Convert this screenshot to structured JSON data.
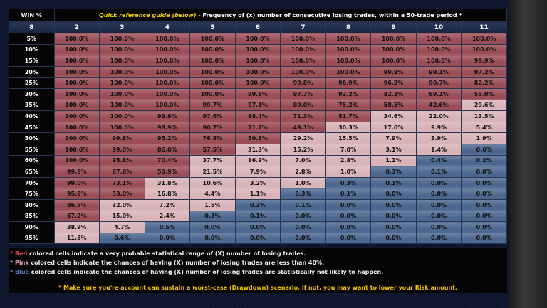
{
  "header": {
    "win_label": "WIN %",
    "selected": "8",
    "title_highlight": "Quick reference guide (below)",
    "title_rest": "- Frequency of (x) number of consecutive losing trades, within a 50-trade period *",
    "columns": [
      "2",
      "3",
      "4",
      "5",
      "6",
      "7",
      "8",
      "9",
      "10",
      "11"
    ]
  },
  "palette": {
    "r": "#9c4e57",
    "p": "#d8b3b7",
    "b": "#4d6890"
  },
  "table": {
    "rows": [
      {
        "win": "5%",
        "cells": [
          "100.0%",
          "100.0%",
          "100.0%",
          "100.0%",
          "100.0%",
          "100.0%",
          "100.0%",
          "100.0%",
          "100.0%",
          "100.0%"
        ],
        "shades": "rrrrrrrrrr"
      },
      {
        "win": "10%",
        "cells": [
          "100.0%",
          "100.0%",
          "100.0%",
          "100.0%",
          "100.0%",
          "100.0%",
          "100.0%",
          "100.0%",
          "100.0%",
          "100.0%"
        ],
        "shades": "rrrrrrrrrr"
      },
      {
        "win": "15%",
        "cells": [
          "100.0%",
          "100.0%",
          "100.0%",
          "100.0%",
          "100.0%",
          "100.0%",
          "100.0%",
          "100.0%",
          "100.0%",
          "99.9%"
        ],
        "shades": "rrrrrrrrrr"
      },
      {
        "win": "20%",
        "cells": [
          "100.0%",
          "100.0%",
          "100.0%",
          "100.0%",
          "100.0%",
          "100.0%",
          "100.0%",
          "99.8%",
          "99.1%",
          "97.2%"
        ],
        "shades": "rrrrrrrrrr"
      },
      {
        "win": "25%",
        "cells": [
          "100.0%",
          "100.0%",
          "100.0%",
          "100.0%",
          "100.0%",
          "99.8%",
          "98.9%",
          "96.2%",
          "90.7%",
          "82.2%"
        ],
        "shades": "rrrrrrrrrr"
      },
      {
        "win": "30%",
        "cells": [
          "100.0%",
          "100.0%",
          "100.0%",
          "100.0%",
          "99.6%",
          "97.7%",
          "92.2%",
          "82.3%",
          "69.1%",
          "55.0%"
        ],
        "shades": "rrrrrrrrrr"
      },
      {
        "win": "35%",
        "cells": [
          "100.0%",
          "100.0%",
          "100.0%",
          "99.7%",
          "97.1%",
          "89.0%",
          "75.2%",
          "58.5%",
          "42.6%",
          "29.6%"
        ],
        "shades": "rrrrrrrrrp"
      },
      {
        "win": "40%",
        "cells": [
          "100.0%",
          "100.0%",
          "99.9%",
          "97.6%",
          "88.4%",
          "71.3%",
          "51.7%",
          "34.6%",
          "22.0%",
          "13.5%"
        ],
        "shades": "rrrrrrrppp"
      },
      {
        "win": "45%",
        "cells": [
          "100.0%",
          "100.0%",
          "98.9%",
          "90.7%",
          "71.7%",
          "49.1%",
          "30.3%",
          "17.6%",
          "9.9%",
          "5.4%"
        ],
        "shades": "rrrrrrpppp"
      },
      {
        "win": "50%",
        "cells": [
          "100.0%",
          "99.8%",
          "95.2%",
          "76.8%",
          "50.8%",
          "29.2%",
          "15.5%",
          "7.9%",
          "3.9%",
          "1.9%"
        ],
        "shades": "rrrrrppppp"
      },
      {
        "win": "55%",
        "cells": [
          "100.0%",
          "99.0%",
          "86.0%",
          "57.5%",
          "31.3%",
          "15.2%",
          "7.0%",
          "3.1%",
          "1.4%",
          "0.6%"
        ],
        "shades": "rrrrpppppb"
      },
      {
        "win": "60%",
        "cells": [
          "100.0%",
          "95.8%",
          "70.4%",
          "37.7%",
          "16.9%",
          "7.0%",
          "2.8%",
          "1.1%",
          "0.4%",
          "0.2%"
        ],
        "shades": "rrrpppppbb"
      },
      {
        "win": "65%",
        "cells": [
          "99.8%",
          "87.8%",
          "50.9%",
          "21.5%",
          "7.9%",
          "2.8%",
          "1.0%",
          "0.3%",
          "0.1%",
          "0.0%"
        ],
        "shades": "rrrppppbbb"
      },
      {
        "win": "70%",
        "cells": [
          "99.0%",
          "73.1%",
          "31.8%",
          "10.6%",
          "3.2%",
          "1.0%",
          "0.3%",
          "0.1%",
          "0.0%",
          "0.0%"
        ],
        "shades": "rrppppbbbb"
      },
      {
        "win": "75%",
        "cells": [
          "95.8%",
          "53.0%",
          "16.8%",
          "4.4%",
          "1.1%",
          "0.3%",
          "0.1%",
          "0.0%",
          "0.0%",
          "0.0%"
        ],
        "shades": "rrpppbbbbb"
      },
      {
        "win": "80%",
        "cells": [
          "86.5%",
          "32.0%",
          "7.2%",
          "1.5%",
          "0.3%",
          "0.1%",
          "0.0%",
          "0.0%",
          "0.0%",
          "0.0%"
        ],
        "shades": "rpppbbbbbb"
      },
      {
        "win": "85%",
        "cells": [
          "67.2%",
          "15.0%",
          "2.4%",
          "0.3%",
          "0.1%",
          "0.0%",
          "0.0%",
          "0.0%",
          "0.0%",
          "0.0%"
        ],
        "shades": "rppbbbbbbb"
      },
      {
        "win": "90%",
        "cells": [
          "38.9%",
          "4.7%",
          "0.5%",
          "0.0%",
          "0.0%",
          "0.0%",
          "0.0%",
          "0.0%",
          "0.0%",
          "0.0%"
        ],
        "shades": "ppbbbbbbbb"
      },
      {
        "win": "95%",
        "cells": [
          "11.5%",
          "0.6%",
          "0.0%",
          "0.0%",
          "0.0%",
          "0.0%",
          "0.0%",
          "0.0%",
          "0.0%",
          "0.0%"
        ],
        "shades": "pbbbbbbbbb"
      }
    ]
  },
  "notes": [
    {
      "marker": "*",
      "word": "Red",
      "text": "colored cells indicate a very probable statistical range of (X) number of losing trades.",
      "color": "#e0454f"
    },
    {
      "marker": "*",
      "word": "Pink",
      "text": "colored cells indicate the chances of having (X) number of losing trades are less than 40%.",
      "color": "#e3a8b4"
    },
    {
      "marker": "*",
      "word": "Blue",
      "text": "colored cells indicate the chances of having (X) number of losing trades are statistically not likely to happen.",
      "color": "#5b7fc0"
    }
  ],
  "warning": "* Make sure you're account can sustain a worst-case (Drawdown) scenario. If not, you may want to lower your Risk amount."
}
